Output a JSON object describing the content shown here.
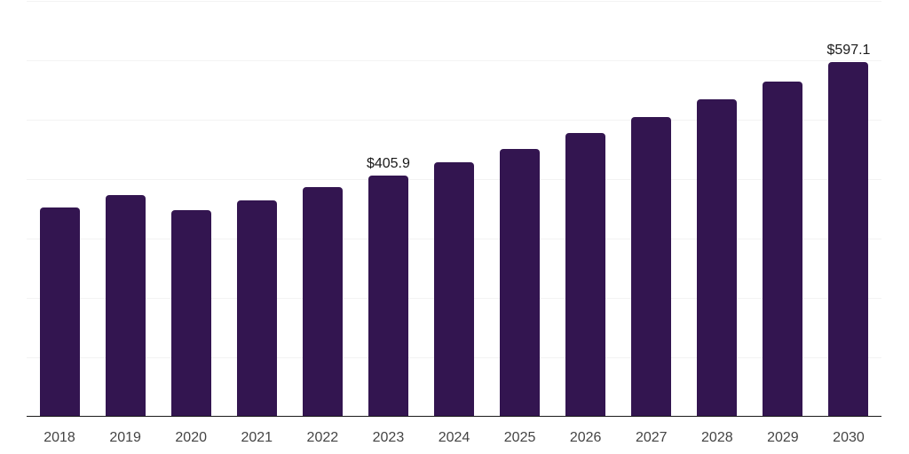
{
  "chart_data": {
    "type": "bar",
    "title": "",
    "xlabel": "",
    "ylabel": "",
    "categories": [
      "2018",
      "2019",
      "2020",
      "2021",
      "2022",
      "2023",
      "2024",
      "2025",
      "2026",
      "2027",
      "2028",
      "2029",
      "2030"
    ],
    "values": [
      352.2,
      373.4,
      347.8,
      364.2,
      386.0,
      405.9,
      428.0,
      450.8,
      477.6,
      504.5,
      534.3,
      564.2,
      597.1
    ],
    "bar_labels": [
      "",
      "",
      "",
      "",
      "",
      "$405.9",
      "",
      "",
      "",
      "",
      "",
      "",
      "$597.1"
    ],
    "ylim": [
      0,
      700
    ],
    "grid_interval": 100,
    "grid": true,
    "legend": false,
    "colors": {
      "bar": "#331550",
      "grid": "#f3f3f3",
      "axis": "#1a1a1a",
      "tick_label": "#444444",
      "data_label": "#1a1a1a",
      "background": "#ffffff"
    }
  }
}
